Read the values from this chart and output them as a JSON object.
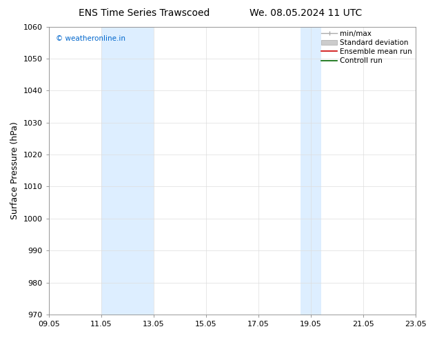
{
  "title_left": "ENS Time Series Trawscoed",
  "title_right": "We. 08.05.2024 11 UTC",
  "ylabel": "Surface Pressure (hPa)",
  "ylim": [
    970,
    1060
  ],
  "yticks": [
    970,
    980,
    990,
    1000,
    1010,
    1020,
    1030,
    1040,
    1050,
    1060
  ],
  "xtick_labels": [
    "09.05",
    "11.05",
    "13.05",
    "15.05",
    "17.05",
    "19.05",
    "21.05",
    "23.05"
  ],
  "xtick_positions": [
    0,
    2,
    4,
    6,
    8,
    10,
    12,
    14
  ],
  "xlim": [
    0,
    14
  ],
  "watermark": "© weatheronline.in",
  "watermark_color": "#0066cc",
  "background_color": "#ffffff",
  "plot_bg_color": "#ffffff",
  "shaded_bands": [
    {
      "x_start": 2.0,
      "x_end": 4.0,
      "color": "#ddeeff"
    },
    {
      "x_start": 9.6,
      "x_end": 10.4,
      "color": "#ddeeff"
    }
  ],
  "title_fontsize": 10,
  "tick_fontsize": 8,
  "ylabel_fontsize": 9,
  "legend_fontsize": 7.5,
  "grid_color": "#dddddd",
  "grid_linewidth": 0.5,
  "spine_color": "#888888"
}
